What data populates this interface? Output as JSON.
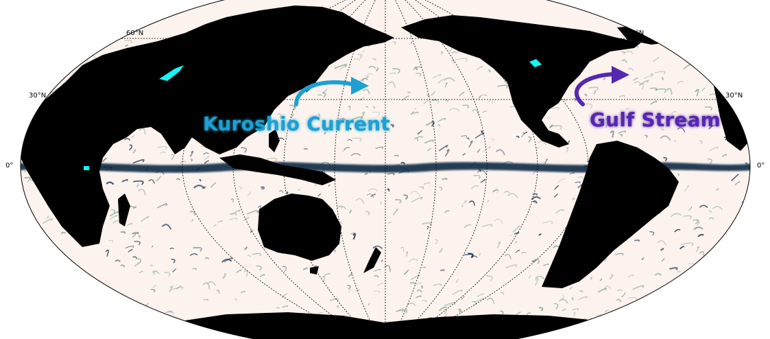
{
  "map": {
    "projection": "Mollweide",
    "central_longitude_deg": 180,
    "field": "ocean eddy speed / velocity (dark = strong)",
    "colors": {
      "ocean_background": "#fcf2ee",
      "land": "#000000",
      "lakes": "#16f4f4",
      "eddy_light": "#7fa592",
      "eddy_dark": "#0f2a45",
      "graticule": "#000000"
    },
    "labels": {
      "lat_60_left": "60°N",
      "lat_60_right": "60°N",
      "lat_30_left": "30°N",
      "lat_30_right": "30°N",
      "lat_0_left": "0°",
      "lat_0_right": "0°"
    },
    "callouts": {
      "kuroshio": {
        "text": "Kuroshio Current",
        "color": "#1da1d2"
      },
      "gulf": {
        "text": "Gulf Stream",
        "color": "#5528b0"
      }
    }
  }
}
